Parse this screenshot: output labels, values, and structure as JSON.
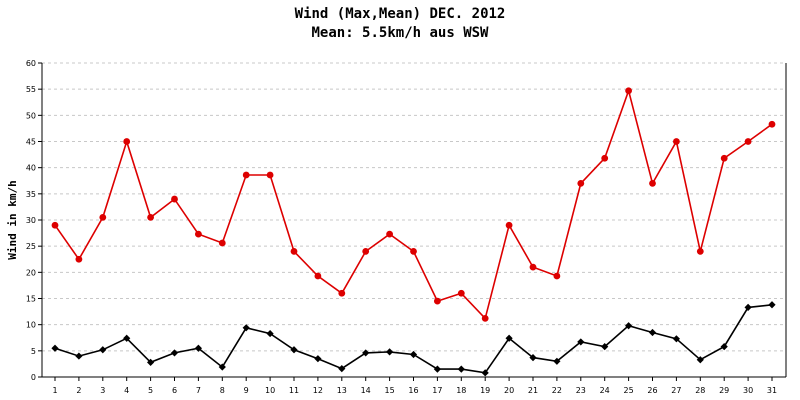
{
  "chart_data": {
    "type": "line",
    "title": "Wind (Max,Mean) DEC. 2012",
    "subtitle": "Mean: 5.5km/h aus WSW",
    "xlabel": "",
    "ylabel": "Wind in km/h",
    "ylim": [
      0,
      60
    ],
    "yticks": [
      0,
      5,
      10,
      15,
      20,
      25,
      30,
      35,
      40,
      45,
      50,
      55,
      60
    ],
    "grid": true,
    "categories": [
      "1",
      "2",
      "3",
      "4",
      "5",
      "6",
      "7",
      "8",
      "9",
      "10",
      "11",
      "12",
      "13",
      "14",
      "15",
      "16",
      "17",
      "18",
      "19",
      "20",
      "21",
      "22",
      "23",
      "24",
      "25",
      "26",
      "27",
      "28",
      "29",
      "30",
      "31"
    ],
    "series": [
      {
        "color": "#dd0000",
        "marker": "circle",
        "values": [
          29,
          22.5,
          30.5,
          45,
          30.5,
          34,
          27.3,
          25.6,
          38.6,
          38.6,
          24,
          19.3,
          16,
          24,
          27.3,
          24,
          14.5,
          16,
          11.2,
          29,
          21,
          19.3,
          37,
          41.8,
          54.7,
          37,
          45,
          24,
          41.8,
          45,
          48.3
        ]
      },
      {
        "color": "#000000",
        "marker": "diamond",
        "values": [
          5.5,
          4,
          5.2,
          7.4,
          2.8,
          4.6,
          5.5,
          1.9,
          9.4,
          8.3,
          5.2,
          3.5,
          1.6,
          4.6,
          4.8,
          4.3,
          1.5,
          1.5,
          0.8,
          7.4,
          3.7,
          3,
          6.7,
          5.8,
          9.8,
          8.5,
          7.3,
          3.3,
          5.8,
          13.3,
          13.8
        ]
      }
    ]
  }
}
